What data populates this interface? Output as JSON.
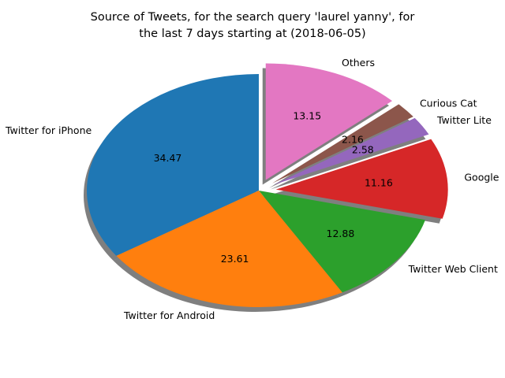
{
  "chart_data": {
    "type": "pie",
    "title": "Source of Tweets, for the search query 'laurel yanny', for\nthe last 7 days starting at (2018-06-05)",
    "slices": [
      {
        "label": "Twitter for iPhone",
        "value": 34.47,
        "value_label": "34.47",
        "color": "#1f77b4",
        "exploded": false
      },
      {
        "label": "Twitter for Android",
        "value": 23.61,
        "value_label": "23.61",
        "color": "#ff7f0e",
        "exploded": false
      },
      {
        "label": "Twitter Web Client",
        "value": 12.88,
        "value_label": "12.88",
        "color": "#2ca02c",
        "exploded": false
      },
      {
        "label": "Google",
        "value": 11.16,
        "value_label": "11.16",
        "color": "#d62728",
        "exploded": true
      },
      {
        "label": "Twitter Lite",
        "value": 2.58,
        "value_label": "2.58",
        "color": "#9467bd",
        "exploded": true
      },
      {
        "label": "Curious Cat",
        "value": 2.16,
        "value_label": "2.16",
        "color": "#8c564b",
        "exploded": true
      },
      {
        "label": "Others",
        "value": 13.15,
        "value_label": "13.15",
        "color": "#e377c2",
        "exploded": true
      }
    ],
    "start_angle_deg": 90,
    "direction": "counterclockwise",
    "shadow": true,
    "legend": "none"
  }
}
